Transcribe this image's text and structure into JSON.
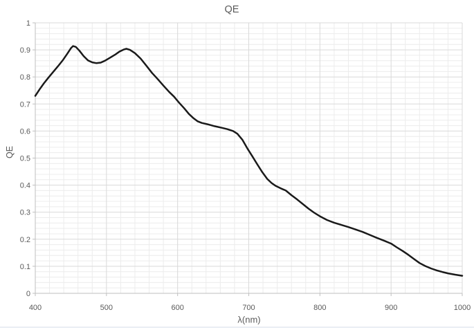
{
  "chart_data": {
    "type": "line",
    "title": "QE",
    "xlabel": "λ(nm)",
    "ylabel": "QE",
    "xlim": [
      400,
      1000
    ],
    "ylim": [
      0,
      1
    ],
    "x_major_ticks": [
      400,
      500,
      600,
      700,
      800,
      900,
      1000
    ],
    "y_major_ticks": [
      0,
      0.1,
      0.2,
      0.3,
      0.4,
      0.5,
      0.6,
      0.7,
      0.8,
      0.9,
      1
    ],
    "x_minor_step": 20,
    "y_minor_step": 0.02,
    "grid": "major+minor",
    "legend": "none",
    "series": [
      {
        "name": "QE",
        "color": "#1a1a1a",
        "width": 2.5,
        "points": [
          [
            400,
            0.73
          ],
          [
            406,
            0.754
          ],
          [
            412,
            0.776
          ],
          [
            418,
            0.796
          ],
          [
            425,
            0.818
          ],
          [
            432,
            0.84
          ],
          [
            439,
            0.863
          ],
          [
            445,
            0.886
          ],
          [
            450,
            0.906
          ],
          [
            453,
            0.914
          ],
          [
            457,
            0.911
          ],
          [
            462,
            0.897
          ],
          [
            468,
            0.877
          ],
          [
            474,
            0.861
          ],
          [
            480,
            0.854
          ],
          [
            486,
            0.851
          ],
          [
            492,
            0.853
          ],
          [
            498,
            0.86
          ],
          [
            505,
            0.871
          ],
          [
            512,
            0.882
          ],
          [
            518,
            0.893
          ],
          [
            524,
            0.901
          ],
          [
            528,
            0.904
          ],
          [
            533,
            0.9
          ],
          [
            540,
            0.888
          ],
          [
            548,
            0.868
          ],
          [
            556,
            0.842
          ],
          [
            564,
            0.815
          ],
          [
            572,
            0.792
          ],
          [
            580,
            0.768
          ],
          [
            588,
            0.745
          ],
          [
            595,
            0.727
          ],
          [
            602,
            0.705
          ],
          [
            609,
            0.685
          ],
          [
            616,
            0.663
          ],
          [
            622,
            0.648
          ],
          [
            628,
            0.636
          ],
          [
            634,
            0.63
          ],
          [
            642,
            0.625
          ],
          [
            652,
            0.618
          ],
          [
            662,
            0.612
          ],
          [
            670,
            0.607
          ],
          [
            678,
            0.6
          ],
          [
            684,
            0.59
          ],
          [
            691,
            0.568
          ],
          [
            698,
            0.536
          ],
          [
            705,
            0.507
          ],
          [
            712,
            0.477
          ],
          [
            719,
            0.448
          ],
          [
            726,
            0.423
          ],
          [
            732,
            0.408
          ],
          [
            738,
            0.397
          ],
          [
            745,
            0.388
          ],
          [
            752,
            0.38
          ],
          [
            760,
            0.363
          ],
          [
            768,
            0.347
          ],
          [
            776,
            0.33
          ],
          [
            784,
            0.313
          ],
          [
            792,
            0.298
          ],
          [
            800,
            0.285
          ],
          [
            810,
            0.271
          ],
          [
            820,
            0.261
          ],
          [
            830,
            0.253
          ],
          [
            840,
            0.245
          ],
          [
            850,
            0.236
          ],
          [
            860,
            0.227
          ],
          [
            870,
            0.216
          ],
          [
            880,
            0.205
          ],
          [
            890,
            0.195
          ],
          [
            900,
            0.184
          ],
          [
            908,
            0.17
          ],
          [
            916,
            0.157
          ],
          [
            924,
            0.143
          ],
          [
            932,
            0.127
          ],
          [
            940,
            0.112
          ],
          [
            948,
            0.101
          ],
          [
            956,
            0.092
          ],
          [
            964,
            0.085
          ],
          [
            972,
            0.079
          ],
          [
            980,
            0.074
          ],
          [
            990,
            0.069
          ],
          [
            1000,
            0.065
          ]
        ]
      }
    ]
  },
  "colors": {
    "background": "#ffffff",
    "minor_gridline": "#ececec",
    "major_gridline": "#d9d9d9",
    "axis_line": "#bfbfbf",
    "text": "#595959",
    "series": "#1a1a1a",
    "bottom_edge": "#e9edf3"
  }
}
